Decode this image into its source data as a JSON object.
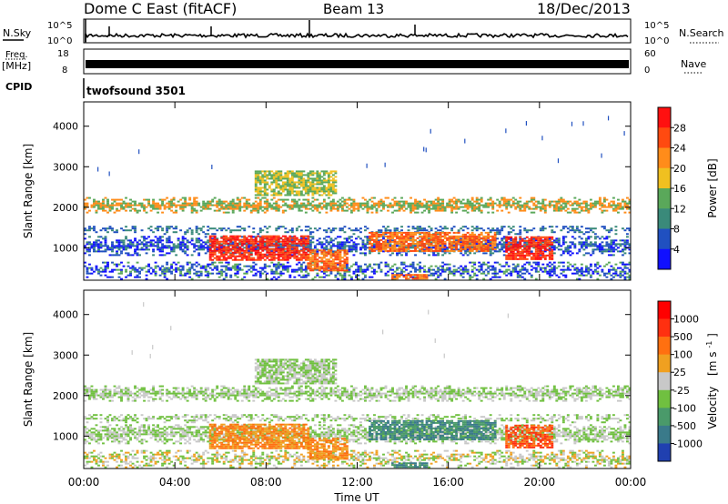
{
  "header": {
    "station": "Dome C East (fitACF)",
    "beam": "Beam 13",
    "date": "18/Dec/2013"
  },
  "strips": {
    "nsky_label": "N.Sky",
    "nsky_ticks": [
      "10^5",
      "10^0"
    ],
    "nsearch_label": "N.Search",
    "nsearch_ticks": [
      "10^5",
      "10^0"
    ],
    "freq_label": "Freq.",
    "freq_unit": "[MHz]",
    "freq_ticks": [
      "18",
      "8"
    ],
    "nave_label": "Nave",
    "nave_ticks": [
      "60",
      "0"
    ],
    "cpid_label": "CPID",
    "cpid_value": "twofsound 3501"
  },
  "chart_data": [
    {
      "type": "heatmap",
      "name": "power",
      "ylabel": "Slant Range [km]",
      "ylim": [
        200,
        4600
      ],
      "y_ticks": [
        1000,
        2000,
        3000,
        4000
      ],
      "xlim": [
        0,
        24
      ],
      "colorbar": {
        "label": "Power [dB]",
        "ticks": [
          "4",
          "8",
          "12",
          "16",
          "20",
          "24",
          "28"
        ],
        "colors": [
          "#1010ff",
          "#2050c0",
          "#3a8a7a",
          "#5aa85a",
          "#f0c020",
          "#ff8c1a",
          "#ff4a10",
          "#ff1010"
        ]
      }
    },
    {
      "type": "heatmap",
      "name": "velocity",
      "ylabel": "Slant Range [km]",
      "ylim": [
        200,
        4600
      ],
      "y_ticks": [
        1000,
        2000,
        3000,
        4000
      ],
      "xlim": [
        0,
        24
      ],
      "xlabel": "Time UT",
      "x_ticks": [
        "00:00",
        "04:00",
        "08:00",
        "12:00",
        "16:00",
        "20:00",
        "00:00"
      ],
      "colorbar": {
        "label": "Velocity",
        "unit": "[m s",
        "unit_sup": "-1",
        "unit_end": "]",
        "ticks": [
          "1000",
          "500",
          "100",
          "25",
          "-25",
          "-100",
          "-500",
          "-1000"
        ],
        "colors": [
          "#2040b0",
          "#3a7a8a",
          "#4a9a6a",
          "#70c040",
          "#c8c8c8",
          "#f0a020",
          "#ff7010",
          "#ff3010",
          "#ff0000"
        ]
      }
    }
  ]
}
